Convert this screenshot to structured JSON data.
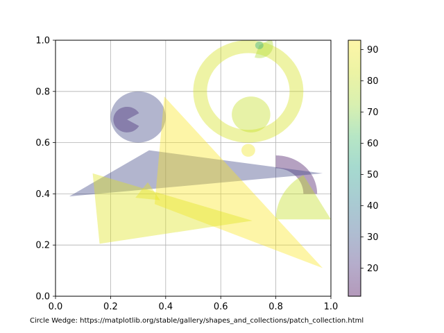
{
  "chart_data": {
    "type": "patch_collection",
    "title": "",
    "xlabel": "",
    "ylabel": "",
    "xlim": [
      0,
      1
    ],
    "ylim": [
      0,
      1
    ],
    "grid": true,
    "x_ticks": [
      "0.0",
      "0.2",
      "0.4",
      "0.6",
      "0.8",
      "1.0"
    ],
    "y_ticks": [
      "0.0",
      "0.2",
      "0.4",
      "0.6",
      "0.8",
      "1.0"
    ],
    "colormap": "viridis",
    "alpha": 0.4,
    "colorbar": {
      "range": [
        11,
        93
      ],
      "ticks": [
        "20",
        "30",
        "40",
        "50",
        "60",
        "70",
        "80",
        "90"
      ],
      "tick_values": [
        20,
        30,
        40,
        50,
        60,
        70,
        80,
        90
      ]
    },
    "patches": [
      {
        "kind": "circle",
        "cx": 0.3,
        "cy": 0.7,
        "r": 0.1,
        "value": 26
      },
      {
        "kind": "wedge",
        "cx": 0.26,
        "cy": 0.69,
        "r": 0.05,
        "start_deg": 30,
        "end_deg": 330,
        "value": 20
      },
      {
        "kind": "annulus",
        "cx": 0.7,
        "cy": 0.8,
        "r": 0.2,
        "width": 0.05,
        "value": 84
      },
      {
        "kind": "wedge",
        "cx": 0.74,
        "cy": 0.98,
        "r": 0.05,
        "start_deg": 250,
        "end_deg": 390,
        "value": 75
      },
      {
        "kind": "circle",
        "cx": 0.74,
        "cy": 0.98,
        "r": 0.015,
        "value": 55
      },
      {
        "kind": "circle",
        "cx": 0.71,
        "cy": 0.71,
        "r": 0.07,
        "value": 80
      },
      {
        "kind": "circle",
        "cx": 0.7,
        "cy": 0.57,
        "r": 0.025,
        "value": 90
      },
      {
        "kind": "wedge",
        "cx": 0.8,
        "cy": 0.4,
        "r": 0.15,
        "start_deg": 0,
        "end_deg": 90,
        "width": 0.05,
        "value": 15
      },
      {
        "kind": "wedge",
        "cx": 1.0,
        "cy": 0.3,
        "r": 0.2,
        "start_deg": 120,
        "end_deg": 180,
        "value": 80
      },
      {
        "kind": "polygon",
        "points": [
          [
            0.05,
            0.39
          ],
          [
            0.34,
            0.57
          ],
          [
            0.97,
            0.48
          ]
        ],
        "value": 26
      },
      {
        "kind": "polygon",
        "points": [
          [
            0.36,
            0.36
          ],
          [
            0.395,
            0.78
          ],
          [
            0.97,
            0.11
          ]
        ],
        "value": 92
      },
      {
        "kind": "polygon",
        "points": [
          [
            0.135,
            0.48
          ],
          [
            0.16,
            0.205
          ],
          [
            0.715,
            0.295
          ]
        ],
        "value": 86
      },
      {
        "kind": "polygon",
        "points": [
          [
            0.29,
            0.385
          ],
          [
            0.335,
            0.445
          ],
          [
            0.38,
            0.375
          ]
        ],
        "value": 88
      }
    ]
  },
  "caption": "Circle Wedge: https://matplotlib.org/stable/gallery/shapes_and_collections/patch_collection.html"
}
